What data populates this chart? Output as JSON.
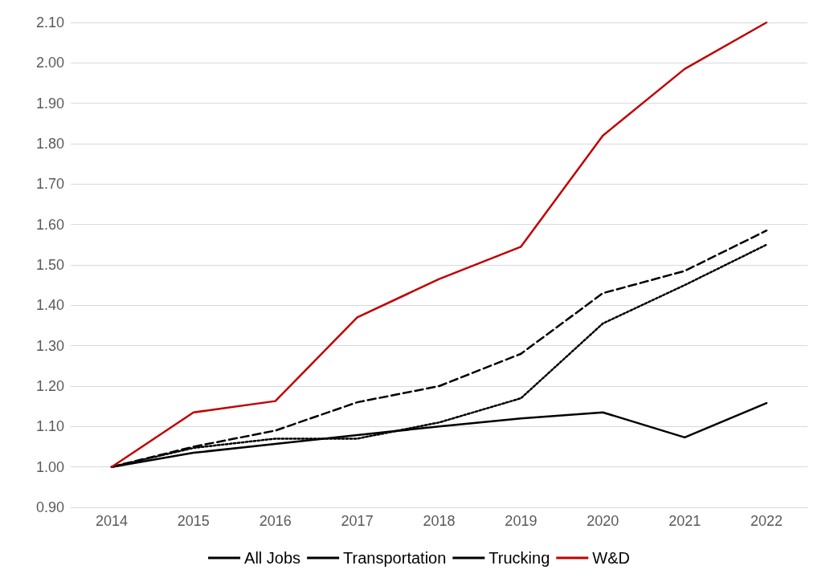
{
  "chart_data": {
    "type": "line",
    "categories": [
      "2014",
      "2015",
      "2016",
      "2017",
      "2018",
      "2019",
      "2020",
      "2021",
      "2022"
    ],
    "series": [
      {
        "name": "All Jobs",
        "color": "#000000",
        "line_style": "solid",
        "values": [
          1.0,
          1.035,
          1.057,
          1.079,
          1.1,
          1.12,
          1.135,
          1.073,
          1.158
        ]
      },
      {
        "name": "Transportation",
        "color": "#000000",
        "line_style": "dashed",
        "values": [
          1.0,
          1.05,
          1.09,
          1.16,
          1.2,
          1.28,
          1.43,
          1.485,
          1.585
        ]
      },
      {
        "name": "Trucking",
        "color": "#000000",
        "line_style": "dotted",
        "values": [
          1.0,
          1.047,
          1.07,
          1.07,
          1.11,
          1.17,
          1.355,
          1.45,
          1.55
        ]
      },
      {
        "name": "W&D",
        "color": "#c00000",
        "line_style": "solid",
        "values": [
          1.0,
          1.135,
          1.163,
          1.37,
          1.465,
          1.545,
          1.82,
          1.985,
          2.1
        ]
      }
    ],
    "ylim": [
      0.9,
      2.1
    ],
    "yticks": [
      {
        "value": 0.9,
        "label": "0.90"
      },
      {
        "value": 1.0,
        "label": "1.00"
      },
      {
        "value": 1.1,
        "label": "1.10"
      },
      {
        "value": 1.2,
        "label": "1.20"
      },
      {
        "value": 1.3,
        "label": "1.30"
      },
      {
        "value": 1.4,
        "label": "1.40"
      },
      {
        "value": 1.5,
        "label": "1.50"
      },
      {
        "value": 1.6,
        "label": "1.60"
      },
      {
        "value": 1.7,
        "label": "1.70"
      },
      {
        "value": 1.8,
        "label": "1.80"
      },
      {
        "value": 1.9,
        "label": "1.90"
      },
      {
        "value": 2.0,
        "label": "2.00"
      },
      {
        "value": 2.1,
        "label": "2.10"
      }
    ],
    "grid": "y",
    "legend": "bottom",
    "marker": "none"
  }
}
